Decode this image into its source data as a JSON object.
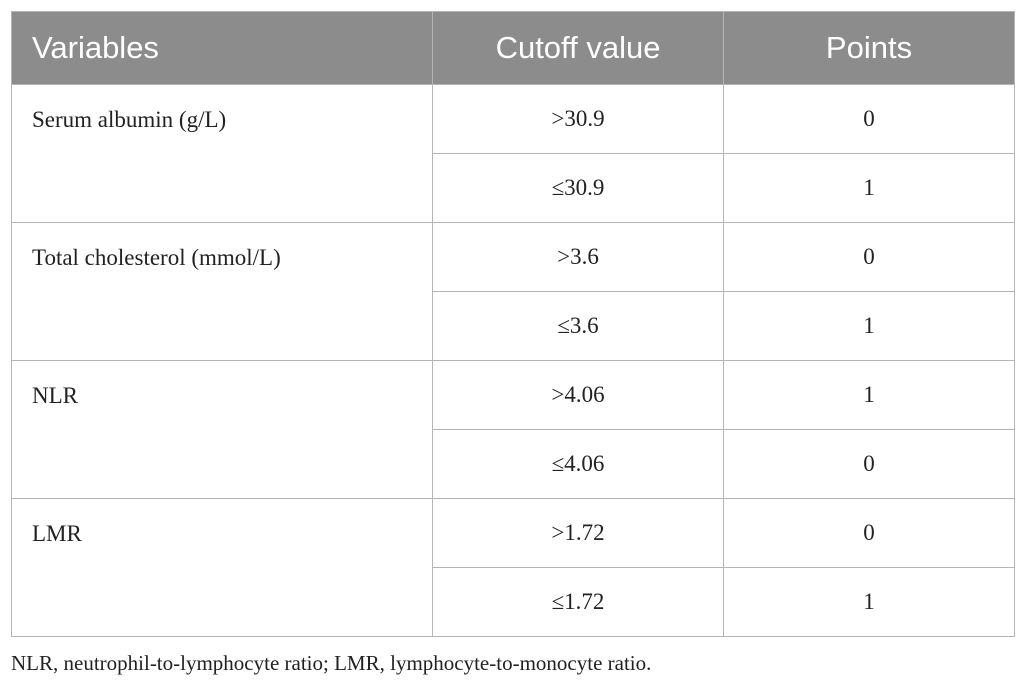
{
  "table": {
    "header": [
      "Variables",
      "Cutoff value",
      "Points"
    ],
    "groups": [
      {
        "variable": "Serum albumin (g/L)",
        "rows": [
          [
            ">30.9",
            0
          ],
          [
            "≤30.9",
            1
          ]
        ]
      },
      {
        "variable": "Total cholesterol (mmol/L)",
        "rows": [
          [
            ">3.6",
            0
          ],
          [
            "≤3.6",
            1
          ]
        ]
      },
      {
        "variable": "NLR",
        "rows": [
          [
            ">4.06",
            1
          ],
          [
            "≤4.06",
            0
          ]
        ]
      },
      {
        "variable": "LMR",
        "rows": [
          [
            ">1.72",
            0
          ],
          [
            "≤1.72",
            1
          ]
        ]
      }
    ],
    "footnote": "NLR, neutrophil-to-lymphocyte ratio; LMR, lymphocyte-to-monocyte ratio."
  }
}
